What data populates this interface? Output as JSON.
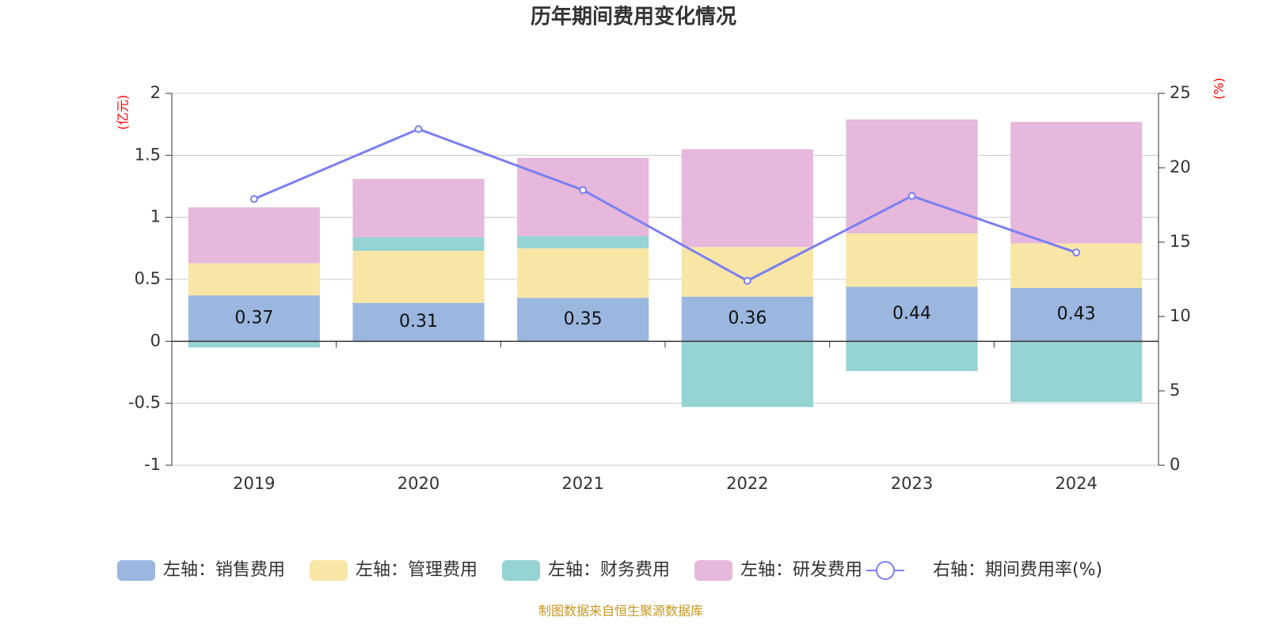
{
  "chart_data": {
    "type": "bar",
    "stacked": true,
    "title": "历年期间费用变化情况",
    "categories": [
      "2019",
      "2020",
      "2021",
      "2022",
      "2023",
      "2024"
    ],
    "left_axis": {
      "unit": "(亿元)",
      "ylim": [
        -1,
        2
      ],
      "ticks": [
        2,
        1.5,
        1,
        0.5,
        0,
        -0.5,
        -1
      ],
      "tick_labels": [
        "2",
        "1.5",
        "1",
        "0.5",
        "0",
        "-0.5",
        "-1"
      ]
    },
    "right_axis": {
      "unit": "(%)",
      "ylim": [
        0,
        25
      ],
      "ticks": [
        25,
        20,
        15,
        10,
        5,
        0
      ],
      "tick_labels": [
        "25",
        "20",
        "15",
        "10",
        "5",
        "0"
      ]
    },
    "series": [
      {
        "name": "左轴：销售费用",
        "axis": "left",
        "kind": "bar",
        "color": "#9bb7e0",
        "values": [
          0.37,
          0.31,
          0.35,
          0.36,
          0.44,
          0.43
        ],
        "labels": [
          "0.37",
          "0.31",
          "0.35",
          "0.36",
          "0.44",
          "0.43"
        ]
      },
      {
        "name": "左轴：管理费用",
        "axis": "left",
        "kind": "bar",
        "color": "#f8e6a7",
        "values": [
          0.26,
          0.42,
          0.4,
          0.4,
          0.43,
          0.36
        ]
      },
      {
        "name": "左轴：财务费用",
        "axis": "left",
        "kind": "bar",
        "color": "#96d3d3",
        "values": [
          -0.05,
          0.11,
          0.1,
          -0.53,
          -0.24,
          -0.49
        ]
      },
      {
        "name": "左轴：研发费用",
        "axis": "left",
        "kind": "bar",
        "color": "#e6b8db",
        "values": [
          0.45,
          0.47,
          0.63,
          0.79,
          0.92,
          0.98
        ]
      },
      {
        "name": "右轴：期间费用率(%)",
        "axis": "right",
        "kind": "line",
        "color": "#7b7ff0",
        "values": [
          17.9,
          22.6,
          18.5,
          12.4,
          18.1,
          14.3
        ]
      }
    ],
    "legend_position": "bottom",
    "source": "制图数据来自恒生聚源数据库"
  }
}
